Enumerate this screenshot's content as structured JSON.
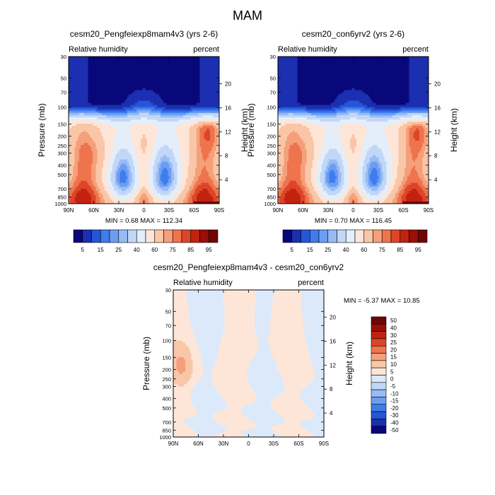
{
  "figure": {
    "title": "MAM"
  },
  "chart_data": [
    {
      "type": "heatmap",
      "title": "cesm20_Pengfeiexp8mam4v3 (yrs 2-6)",
      "left_subtitle": "Relative humidity",
      "right_subtitle": "percent",
      "ylabel": "Pressure (mb)",
      "ylabel_right": "Height (km)",
      "x_ticks": [
        "90N",
        "60N",
        "30N",
        "0",
        "30S",
        "60S",
        "90S"
      ],
      "y_ticks": [
        "30",
        "50",
        "70",
        "100",
        "150",
        "200",
        "250",
        "300",
        "400",
        "500",
        "700",
        "850",
        "1000"
      ],
      "y_ticks_right": [
        "20",
        "16",
        "12",
        "8",
        "4"
      ],
      "xlim": [
        90,
        -90
      ],
      "ylim": [
        1000,
        30
      ],
      "y_scale": "log",
      "min": "0.68",
      "max": "112.34",
      "stats_text": "MIN =  0.68  MAX = 112.34",
      "colorbar_orientation": "horizontal",
      "colorbar_labels": [
        "5",
        "15",
        "25",
        "40",
        "60",
        "75",
        "85",
        "95"
      ],
      "levels": [
        5,
        10,
        15,
        20,
        25,
        30,
        40,
        50,
        60,
        70,
        75,
        80,
        85,
        90,
        95
      ],
      "colors": [
        "#08087a",
        "#1b2fb0",
        "#2556d8",
        "#3f7cec",
        "#6b9ef2",
        "#98bbf5",
        "#c1d7f7",
        "#e4eefb",
        "#fde6d8",
        "#f9c6a8",
        "#f5a07a",
        "#ee744d",
        "#dd4528",
        "#c2220f",
        "#9a0f08",
        "#700505"
      ]
    },
    {
      "type": "heatmap",
      "title": "cesm20_con6yrv2 (yrs 2-6)",
      "left_subtitle": "Relative humidity",
      "right_subtitle": "percent",
      "ylabel": "Pressure (mb)",
      "ylabel_right": "Height (km)",
      "x_ticks": [
        "90N",
        "60N",
        "30N",
        "0",
        "30S",
        "60S",
        "90S"
      ],
      "y_ticks": [
        "30",
        "50",
        "70",
        "100",
        "150",
        "200",
        "250",
        "300",
        "400",
        "500",
        "700",
        "850",
        "1000"
      ],
      "y_ticks_right": [
        "20",
        "16",
        "12",
        "8",
        "4"
      ],
      "xlim": [
        90,
        -90
      ],
      "ylim": [
        1000,
        30
      ],
      "y_scale": "log",
      "min": "0.70",
      "max": "116.45",
      "stats_text": "MIN =  0.70  MAX = 116.45",
      "colorbar_orientation": "horizontal",
      "colorbar_labels": [
        "5",
        "15",
        "25",
        "40",
        "60",
        "75",
        "85",
        "95"
      ],
      "levels": [
        5,
        10,
        15,
        20,
        25,
        30,
        40,
        50,
        60,
        70,
        75,
        80,
        85,
        90,
        95
      ],
      "colors": [
        "#08087a",
        "#1b2fb0",
        "#2556d8",
        "#3f7cec",
        "#6b9ef2",
        "#98bbf5",
        "#c1d7f7",
        "#e4eefb",
        "#fde6d8",
        "#f9c6a8",
        "#f5a07a",
        "#ee744d",
        "#dd4528",
        "#c2220f",
        "#9a0f08",
        "#700505"
      ]
    },
    {
      "type": "heatmap",
      "title": "cesm20_Pengfeiexp8mam4v3 - cesm20_con6yrv2",
      "left_subtitle": "Relative humidity",
      "right_subtitle": "percent",
      "ylabel": "Pressure (mb)",
      "ylabel_right": "Height (km)",
      "x_ticks": [
        "90N",
        "60N",
        "30N",
        "0",
        "30S",
        "60S",
        "90S"
      ],
      "y_ticks": [
        "30",
        "50",
        "70",
        "100",
        "150",
        "200",
        "250",
        "300",
        "400",
        "500",
        "700",
        "850",
        "1000"
      ],
      "y_ticks_right": [
        "20",
        "16",
        "12",
        "8",
        "4"
      ],
      "xlim": [
        90,
        -90
      ],
      "ylim": [
        1000,
        30
      ],
      "y_scale": "log",
      "min": "-5.37",
      "max": "10.85",
      "stats_text": "MIN = -5.37  MAX =  10.85",
      "colorbar_orientation": "vertical",
      "colorbar_labels": [
        "50",
        "40",
        "30",
        "25",
        "20",
        "15",
        "10",
        "5",
        "0",
        "-5",
        "-10",
        "-15",
        "-20",
        "-30",
        "-40",
        "-50"
      ],
      "levels": [
        -50,
        -40,
        -30,
        -20,
        -15,
        -10,
        -5,
        0,
        5,
        10,
        15,
        20,
        25,
        30,
        40,
        50
      ],
      "colors": [
        "#08087a",
        "#1b2fb0",
        "#2556d8",
        "#3f7cec",
        "#6b9ef2",
        "#98bbf5",
        "#c1d7f7",
        "#dbe9fb",
        "#fde6d8",
        "#f9c6a8",
        "#f5a07a",
        "#ee744d",
        "#dd4528",
        "#c2220f",
        "#9a0f08",
        "#700505"
      ]
    }
  ]
}
